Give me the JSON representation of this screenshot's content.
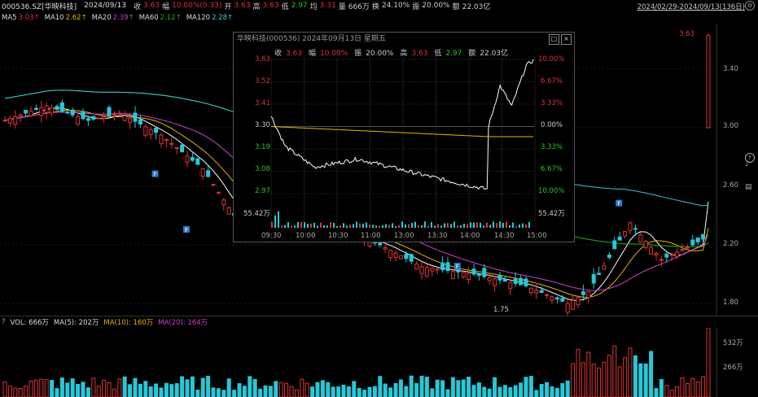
{
  "header": {
    "code": "000536.SZ[华映科技]",
    "date": "2024/09/13",
    "close_label": "收",
    "close_value": "3.63",
    "change_label": "幅",
    "change_value": "10.00%(0.33)",
    "open_label": "开",
    "open_value": "3.63",
    "high_label": "高",
    "high_value": "3.63",
    "low_label": "低",
    "low_value": "2.97",
    "avg_label": "均",
    "avg_value": "3.31",
    "volume_label": "量",
    "volume_value": "666万",
    "turnover_label": "换",
    "turnover_value": "24.10%",
    "amplitude_label": "振",
    "amplitude_value": "20.00%",
    "amount_label": "额",
    "amount_value": "22.03亿",
    "range": "2024/02/29-2024/09/13(136日)"
  },
  "ma_legend": {
    "ma5": "MA5",
    "ma5_value": "3.03↑",
    "ma10": "MA10",
    "ma10_value": "2.62↑",
    "ma20": "MA20",
    "ma20_value": "2.39↑",
    "ma60": "MA60",
    "ma60_value": "2.12↑",
    "ma120": "MA120",
    "ma120_value": "2.28↑"
  },
  "colors": {
    "up": "#e03333",
    "down": "#26c8d8",
    "ma5": "#ffffff",
    "ma10": "#e8b400",
    "ma20": "#d040d0",
    "ma60": "#1fb01f",
    "ma120": "#39c7d6"
  },
  "main_axis": {
    "ticks": [
      "3.40",
      "3.00",
      "2.60",
      "2.20",
      "1.80"
    ]
  },
  "annotations": {
    "high": "3.63",
    "low": "1.75"
  },
  "marker_letter": "F",
  "popup": {
    "title": "华映科技(000536) 2024年09月13日 星期五",
    "stats": {
      "close_label": "收",
      "close_value": "3.63",
      "change_label": "幅",
      "change_value": "10.00%",
      "amplitude_label": "振",
      "amplitude_value": "20.00%",
      "high_label": "高",
      "high_value": "3.63",
      "low_label": "低",
      "low_value": "2.97",
      "amount_label": "额",
      "amount_value": "22.03亿"
    },
    "left_ticks": [
      "3.63",
      "3.52",
      "3.41",
      "3.30",
      "3.19",
      "3.08",
      "2.97"
    ],
    "right_ticks": [
      "10.00%",
      "6.67%",
      "3.33%",
      "0.00%",
      "3.33%",
      "6.67%",
      "10.00%"
    ],
    "vol_label": "55.42万",
    "time_ticks": [
      "09:30",
      "10:00",
      "10:30",
      "11:00",
      "13:00",
      "13:30",
      "14:00",
      "14:30",
      "15:00"
    ],
    "restore_icon": "□",
    "close_icon": "×"
  },
  "volume_legend": {
    "prefix": "?",
    "vol": "VOL: 666万",
    "ma5": "MA(5): 202万",
    "ma10": "MA(10): 160万",
    "ma20": "MA(20): 164万"
  },
  "volume_axis": {
    "ticks": [
      "532万",
      "266万"
    ]
  },
  "corner_icons": [
    "gear-icon",
    "up-arrow-icon",
    "sound-icon",
    "chart-icon",
    "grid-icon",
    "list-icon",
    "doc-icon",
    "checkbox-icon"
  ]
}
